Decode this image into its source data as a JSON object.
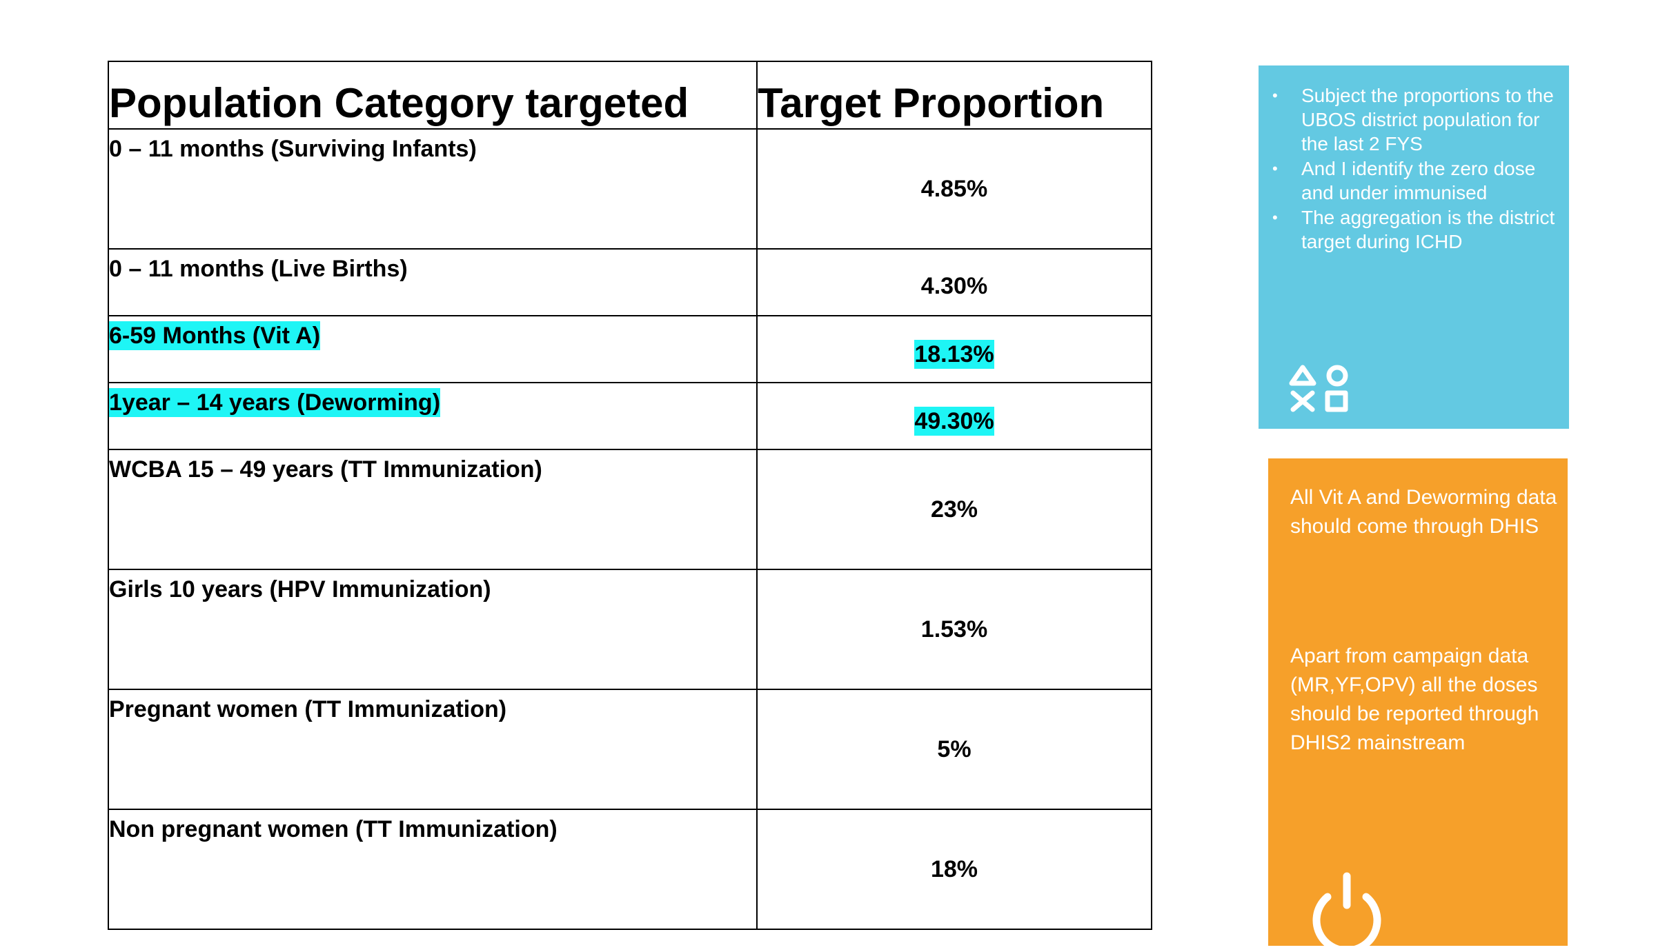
{
  "table": {
    "headers": [
      "Population Category targeted",
      "Target Proportion"
    ],
    "rows": [
      {
        "category": "0 – 11 months (Surviving Infants)",
        "proportion": "4.85%"
      },
      {
        "category": "0 – 11 months (Live Births)",
        "proportion": "4.30%"
      },
      {
        "category": "6-59 Months (Vit A)",
        "proportion": "18.13%"
      },
      {
        "category": "1year – 14 years (Deworming)",
        "proportion": "49.30%"
      },
      {
        "category": "WCBA 15 – 49 years (TT Immunization)",
        "proportion": "23%"
      },
      {
        "category": "Girls 10 years (HPV Immunization)",
        "proportion": "1.53%"
      },
      {
        "category": "Pregnant women (TT Immunization)",
        "proportion": "5%"
      },
      {
        "category": "Non pregnant women (TT Immunization)",
        "proportion": "18%"
      }
    ],
    "highlight_color": "#1ef5f5"
  },
  "blue_card": {
    "bullets": [
      "Subject the proportions to the UBOS district population for the last 2 FYS",
      "And I identify the zero dose and under immunised",
      "The aggregation is the district target during ICHD"
    ],
    "icon": "playstation-shapes-icon",
    "color": "#63c9e2"
  },
  "orange_card": {
    "paragraphs": [
      "All Vit A and Deworming data should come through DHIS",
      "Apart from campaign data (MR,YF,OPV) all the doses should be reported through DHIS2 mainstream"
    ],
    "icon": "power-icon",
    "color": "#f6a02a"
  }
}
